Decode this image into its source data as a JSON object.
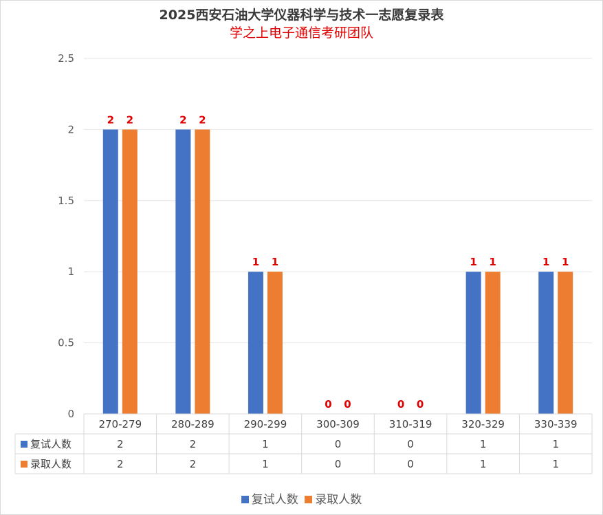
{
  "chart_data": {
    "type": "bar",
    "title": "2025西安石油大学仪器科学与技术一志愿复录表",
    "subtitle": "学之上电子通信考研团队",
    "categories": [
      "270-279",
      "280-289",
      "290-299",
      "300-309",
      "310-319",
      "320-329",
      "330-339"
    ],
    "series": [
      {
        "name": "复试人数",
        "values": [
          2,
          2,
          1,
          0,
          0,
          1,
          1
        ],
        "color": "#4472c4"
      },
      {
        "name": "录取人数",
        "values": [
          2,
          2,
          1,
          0,
          0,
          1,
          1
        ],
        "color": "#ed7d31"
      }
    ],
    "yticks": [
      "0",
      "0.5",
      "1",
      "1.5",
      "2",
      "2.5"
    ],
    "ylim": [
      0,
      2.5
    ],
    "grid": true,
    "data_label_color": "#e00000",
    "data_table": true,
    "legend_position": "bottom"
  }
}
